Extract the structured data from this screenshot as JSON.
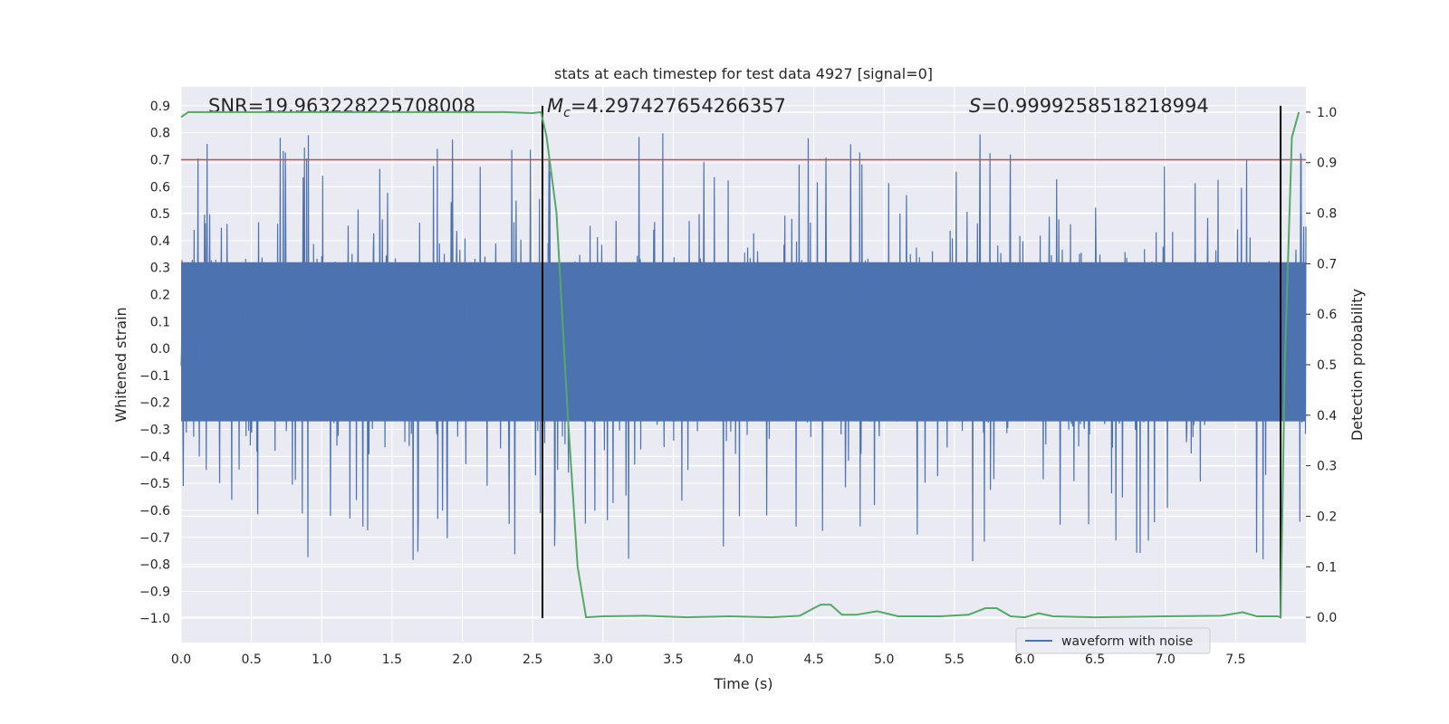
{
  "chart_data": {
    "type": "line",
    "title": "stats at each timestep for test data 4927 [signal=0]",
    "xlabel": "Time (s)",
    "ylabel_left": "Whitened strain",
    "ylabel_right": "Detection probability",
    "xlim": [
      0.0,
      8.0
    ],
    "ylim_left": [
      -1.09,
      0.97
    ],
    "ylim_right": [
      -0.05,
      1.05
    ],
    "x_ticks": [
      0.0,
      0.5,
      1.0,
      1.5,
      2.0,
      2.5,
      3.0,
      3.5,
      4.0,
      4.5,
      5.0,
      5.5,
      6.0,
      6.5,
      7.0,
      7.5
    ],
    "x_tick_labels": [
      "0.0",
      "0.5",
      "1.0",
      "1.5",
      "2.0",
      "2.5",
      "3.0",
      "3.5",
      "4.0",
      "4.5",
      "5.0",
      "5.5",
      "6.0",
      "6.5",
      "7.0",
      "7.5"
    ],
    "y_left_ticks": [
      0.9,
      0.8,
      0.7,
      0.6,
      0.5,
      0.4,
      0.3,
      0.2,
      0.1,
      0.0,
      -0.1,
      -0.2,
      -0.3,
      -0.4,
      -0.5,
      -0.6,
      -0.7,
      -0.8,
      -0.9,
      -1.0
    ],
    "y_left_tick_labels": [
      "0.9",
      "0.8",
      "0.7",
      "0.6",
      "0.5",
      "0.4",
      "0.3",
      "0.2",
      "0.1",
      "0.0",
      "−0.1",
      "−0.2",
      "−0.3",
      "−0.4",
      "−0.5",
      "−0.6",
      "−0.7",
      "−0.8",
      "−0.9",
      "−1.0"
    ],
    "y_right_ticks": [
      1.0,
      0.9,
      0.8,
      0.7,
      0.6,
      0.5,
      0.4,
      0.3,
      0.2,
      0.1,
      0.0
    ],
    "y_right_tick_labels": [
      "1.0",
      "0.9",
      "0.8",
      "0.7",
      "0.6",
      "0.5",
      "0.4",
      "0.3",
      "0.2",
      "0.1",
      "0.0"
    ],
    "grid": true,
    "legend": {
      "placement": "lower-center-right",
      "entries": [
        "waveform with noise"
      ]
    },
    "annotations": {
      "snr": "SNR=19.963228225708008",
      "mc_symbol": "M",
      "mc_subscript": "c",
      "mc_value": "=4.297427654266357",
      "s_symbol": "S",
      "s_value": "=0.9999258518218994"
    },
    "threshold_line": {
      "axis": "left",
      "y": 0.7,
      "color": "#c44e52"
    },
    "vertical_markers": [
      {
        "x": 2.57,
        "ymin": -1.0,
        "ymax": 0.9,
        "color": "#000000"
      },
      {
        "x": 7.82,
        "ymin": -1.0,
        "ymax": 0.9,
        "color": "#000000"
      }
    ],
    "waveform": {
      "name": "waveform with noise",
      "color": "#4c72b0",
      "sample_rate_hz": 2048,
      "duration_s": 8.0,
      "core_amplitude_range": [
        -0.27,
        0.32
      ],
      "extreme_range": [
        -0.85,
        0.85
      ]
    },
    "detection_probability": {
      "color": "#55a868",
      "x": [
        0.0,
        0.05,
        0.1,
        0.3,
        0.5,
        1.0,
        1.5,
        2.0,
        2.3,
        2.5,
        2.56,
        2.6,
        2.67,
        2.75,
        2.82,
        2.88,
        3.0,
        3.3,
        3.6,
        3.9,
        4.2,
        4.4,
        4.5,
        4.55,
        4.62,
        4.7,
        4.8,
        4.95,
        5.1,
        5.4,
        5.6,
        5.72,
        5.8,
        5.9,
        6.0,
        6.1,
        6.2,
        6.5,
        7.0,
        7.4,
        7.55,
        7.65,
        7.8,
        7.82,
        7.85,
        7.9,
        7.95
      ],
      "y": [
        0.99,
        1.0,
        1.0,
        1.0,
        1.0,
        1.0,
        1.0,
        1.0,
        1.0,
        0.998,
        1.0,
        0.95,
        0.8,
        0.4,
        0.1,
        0.0,
        0.002,
        0.003,
        0.0,
        0.002,
        0.0,
        0.003,
        0.018,
        0.025,
        0.025,
        0.005,
        0.005,
        0.012,
        0.002,
        0.002,
        0.005,
        0.018,
        0.018,
        0.002,
        0.0,
        0.008,
        0.002,
        0.0,
        0.002,
        0.003,
        0.01,
        0.002,
        0.002,
        0.0,
        0.5,
        0.95,
        1.0
      ]
    }
  }
}
